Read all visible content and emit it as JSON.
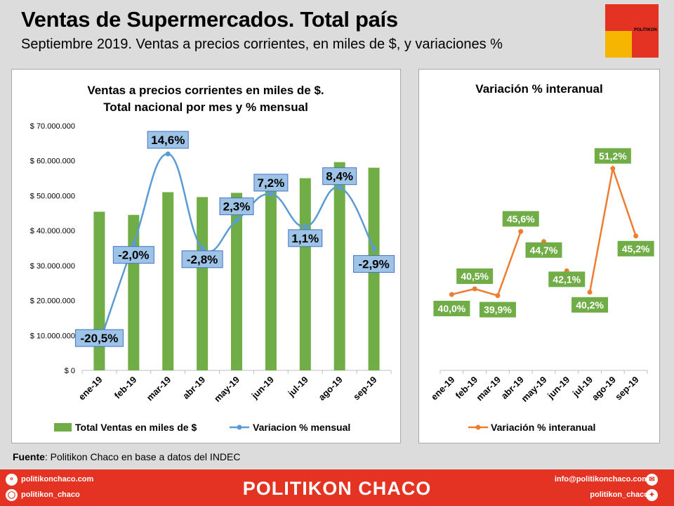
{
  "header": {
    "title": "Ventas de Supermercados. Total país",
    "subtitle": "Septiembre 2019. Ventas a precios corrientes, en miles de $, y variaciones %"
  },
  "logo": {
    "text": "POLITIKON",
    "colors": [
      "#e53323",
      "#e53323",
      "#f6b500",
      "#e53323"
    ]
  },
  "source": {
    "label": "Fuente",
    "text": ": Politikon Chaco en base a datos del INDEC"
  },
  "footer": {
    "brand": "POLITIKON CHACO",
    "web": "politikonchaco.com",
    "instagram": "politikon_chaco",
    "email": "info@politikonchaco.com",
    "twitter": "politikon_chaco",
    "bg_color": "#e53323"
  },
  "chart_data": [
    {
      "type": "bar",
      "title_lines": [
        "Ventas a precios corrientes en miles de $.",
        "Total nacional por mes y % mensual"
      ],
      "categories": [
        "ene-19",
        "feb-19",
        "mar-19",
        "abr-19",
        "may-19",
        "jun-19",
        "jul-19",
        "ago-19",
        "sep-19"
      ],
      "ylim": [
        0,
        70000000
      ],
      "y_ticks": [
        0,
        10000000,
        20000000,
        30000000,
        40000000,
        50000000,
        60000000,
        70000000
      ],
      "y_tick_labels": [
        "$ 0",
        "$ 10.000.000",
        "$ 20.000.000",
        "$ 30.000.000",
        "$ 40.000.000",
        "$ 50.000.000",
        "$ 60.000.000",
        "$ 70.000.000"
      ],
      "series": [
        {
          "name": "Total Ventas en miles de $",
          "type": "bar",
          "color": "#70ad47",
          "values": [
            45400000,
            44500000,
            51000000,
            49600000,
            50800000,
            54500000,
            55000000,
            59600000,
            58000000
          ]
        },
        {
          "name": "Variacion % mensual",
          "type": "line",
          "smooth": true,
          "color": "#5b9bd5",
          "values": [
            -20.5,
            -2.0,
            14.6,
            -2.8,
            2.3,
            7.2,
            1.1,
            8.4,
            -2.9
          ],
          "labels": [
            "-20,5%",
            "-2,0%",
            "14,6%",
            "-2,8%",
            "2,3%",
            "7,2%",
            "1,1%",
            "8,4%",
            "-2,9%"
          ],
          "label_color": "#9dc3e6"
        }
      ],
      "legend_position": "bottom",
      "grid": false
    },
    {
      "type": "line",
      "title": "Variación % interanual",
      "categories": [
        "ene-19",
        "feb-19",
        "mar-19",
        "abr-19",
        "may-19",
        "jun-19",
        "jul-19",
        "ago-19",
        "sep-19"
      ],
      "series": [
        {
          "name": "Variación % interanual",
          "color": "#ed7d31",
          "values": [
            40.0,
            40.5,
            39.9,
            45.6,
            44.7,
            42.1,
            40.2,
            51.2,
            45.2
          ],
          "labels": [
            "40,0%",
            "40,5%",
            "39,9%",
            "45,6%",
            "44,7%",
            "42,1%",
            "40,2%",
            "51,2%",
            "45,2%"
          ],
          "label_color": "#70ad47",
          "hidden_segment_after": 3,
          "hidden_segments_count": 3
        }
      ],
      "y_axis_shown": false,
      "legend_position": "bottom",
      "grid": false
    }
  ]
}
